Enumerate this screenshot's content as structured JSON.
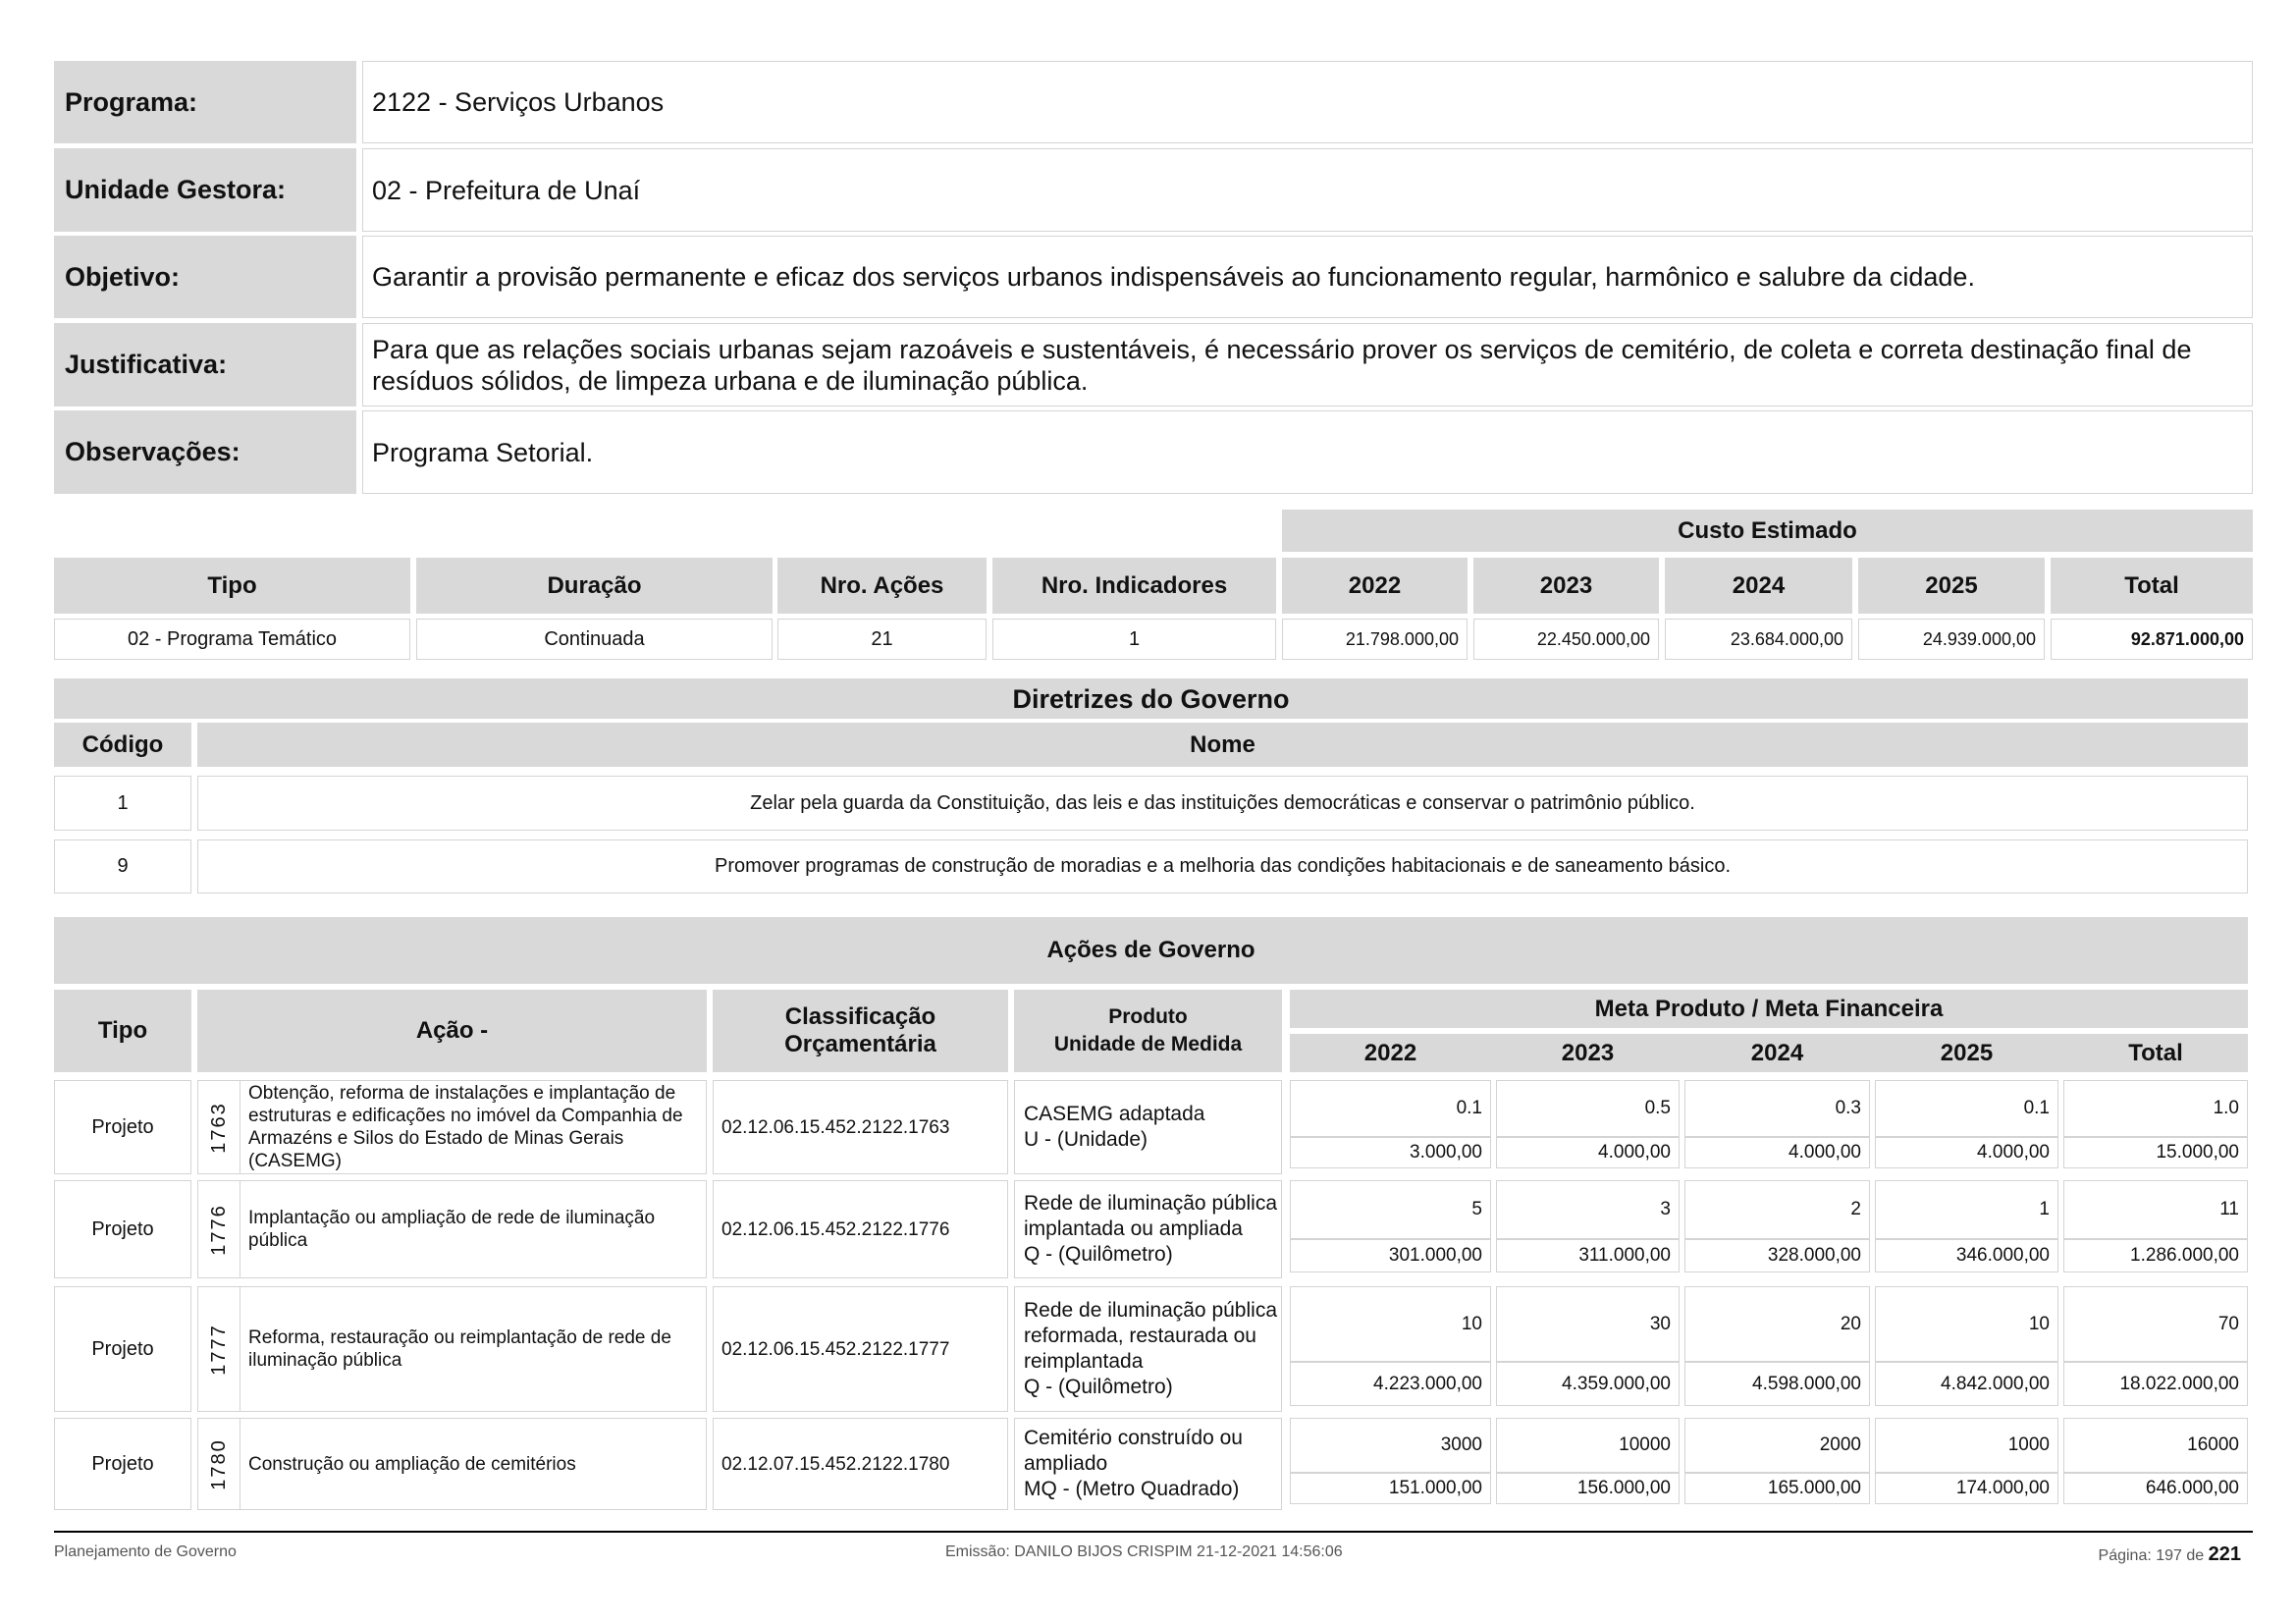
{
  "info": [
    {
      "label": "Programa:",
      "value": "2122 - Serviços Urbanos"
    },
    {
      "label": "Unidade Gestora:",
      "value": "02 - Prefeitura de Unaí"
    },
    {
      "label": "Objetivo:",
      "value": "Garantir a provisão permanente e eficaz dos serviços urbanos indispensáveis ao funcionamento regular, harmônico e salubre da cidade."
    },
    {
      "label": "Justificativa:",
      "value": "Para que as relações sociais urbanas sejam razoáveis e sustentáveis, é necessário prover os serviços de cemitério, de coleta e correta destinação final de resíduos sólidos, de limpeza urbana e de iluminação pública."
    },
    {
      "label": "Observações:",
      "value": "Programa Setorial."
    }
  ],
  "summary": {
    "custo_title": "Custo Estimado",
    "headers": [
      "Tipo",
      "Duração",
      "Nro. Ações",
      "Nro. Indicadores",
      "2022",
      "2023",
      "2024",
      "2025",
      "Total"
    ],
    "row": [
      "02 - Programa Temático",
      "Continuada",
      "21",
      "1",
      "21.798.000,00",
      "22.450.000,00",
      "23.684.000,00",
      "24.939.000,00",
      "92.871.000,00"
    ]
  },
  "diretrizes": {
    "title": "Diretrizes do Governo",
    "headers": [
      "Código",
      "Nome"
    ],
    "rows": [
      [
        "1",
        "Zelar pela guarda da Constituição, das leis e das instituições democráticas e conservar o patrimônio público."
      ],
      [
        "9",
        "Promover programas de construção de moradias e a melhoria das condições habitacionais e de saneamento básico."
      ]
    ]
  },
  "acoes": {
    "title": "Ações de Governo",
    "headers": {
      "tipo": "Tipo",
      "acao": "Ação -",
      "classificacao": "Classificação Orçamentária",
      "produto": "Produto\nUnidade de Medida",
      "meta": "Meta Produto / Meta Financeira",
      "years": [
        "2022",
        "2023",
        "2024",
        "2025",
        "Total"
      ]
    },
    "rows": [
      {
        "tipo": "Projeto",
        "codigo": "1763",
        "descricao": "Obtenção, reforma de instalações e implantação de estruturas e edificações no imóvel da Companhia de Armazéns e Silos do Estado de Minas Gerais (CASEMG)",
        "classificacao": "02.12.06.15.452.2122.1763",
        "produto": "CASEMG adaptada\nU - (Unidade)",
        "meta_produto": [
          "0.1",
          "0.5",
          "0.3",
          "0.1",
          "1.0"
        ],
        "meta_financeira": [
          "3.000,00",
          "4.000,00",
          "4.000,00",
          "4.000,00",
          "15.000,00"
        ]
      },
      {
        "tipo": "Projeto",
        "codigo": "1776",
        "descricao": "Implantação ou ampliação de rede de iluminação pública",
        "classificacao": "02.12.06.15.452.2122.1776",
        "produto": "Rede de iluminação pública implantada ou ampliada\nQ - (Quilômetro)",
        "meta_produto": [
          "5",
          "3",
          "2",
          "1",
          "11"
        ],
        "meta_financeira": [
          "301.000,00",
          "311.000,00",
          "328.000,00",
          "346.000,00",
          "1.286.000,00"
        ]
      },
      {
        "tipo": "Projeto",
        "codigo": "1777",
        "descricao": "Reforma, restauração ou reimplantação de rede de iluminação pública",
        "classificacao": "02.12.06.15.452.2122.1777",
        "produto": "Rede de iluminação pública reformada, restaurada ou reimplantada\nQ - (Quilômetro)",
        "meta_produto": [
          "10",
          "30",
          "20",
          "10",
          "70"
        ],
        "meta_financeira": [
          "4.223.000,00",
          "4.359.000,00",
          "4.598.000,00",
          "4.842.000,00",
          "18.022.000,00"
        ]
      },
      {
        "tipo": "Projeto",
        "codigo": "1780",
        "descricao": "Construção ou ampliação de cemitérios",
        "classificacao": "02.12.07.15.452.2122.1780",
        "produto": "Cemitério construído ou ampliado\nMQ - (Metro Quadrado)",
        "meta_produto": [
          "3000",
          "10000",
          "2000",
          "1000",
          "16000"
        ],
        "meta_financeira": [
          "151.000,00",
          "156.000,00",
          "165.000,00",
          "174.000,00",
          "646.000,00"
        ]
      }
    ]
  },
  "footer": {
    "left": "Planejamento de Governo",
    "center": "Emissão: DANILO BIJOS CRISPIM 21-12-2021 14:56:06",
    "page_label": "Página: 197 de",
    "total_pages": "221"
  }
}
